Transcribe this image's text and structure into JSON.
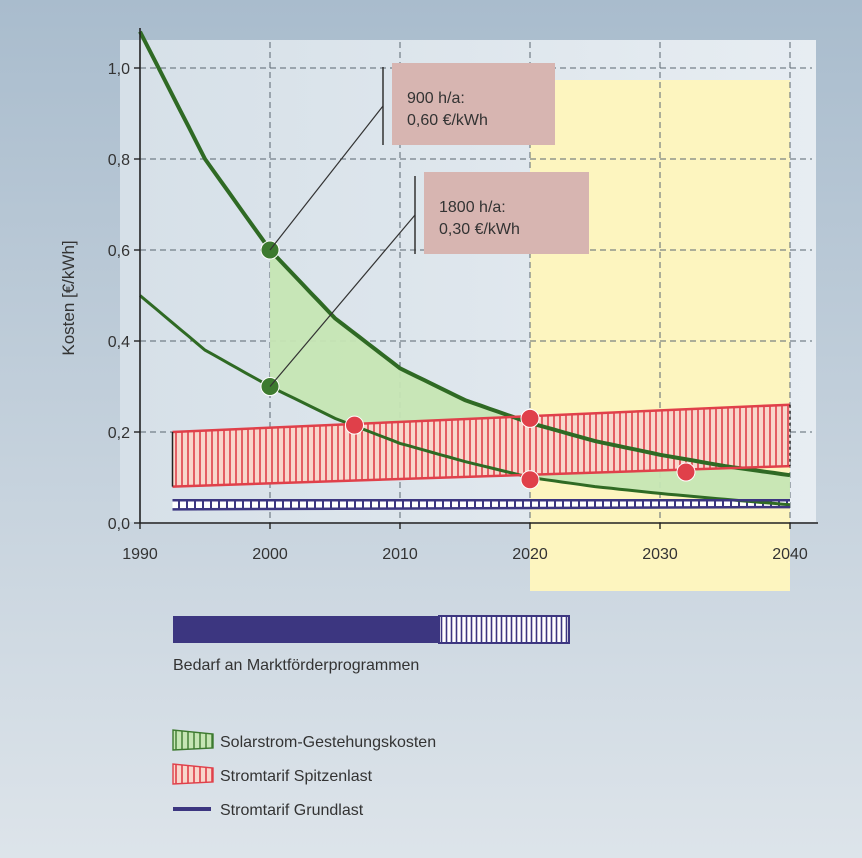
{
  "chart_data": {
    "type": "line",
    "ylabel": "Kosten [€/kWh]",
    "xlim": [
      1990,
      2040
    ],
    "ylim": [
      0,
      1.0
    ],
    "x_ticks": [
      "1990",
      "2000",
      "2010",
      "2020",
      "2030",
      "2040"
    ],
    "y_ticks": [
      "0,0",
      "0,2",
      "0,4",
      "0,6",
      "0,8",
      "1,0"
    ],
    "grid": true,
    "highlight_period": [
      2020,
      2040
    ],
    "series": [
      {
        "name": "Solarstrom-Gestehungskosten",
        "parts": [
          {
            "x": [
              1990,
              1995,
              2000,
              2005,
              2010,
              2015,
              2020,
              2025,
              2030,
              2035,
              2040
            ],
            "y": [
              1.08,
              0.8,
              0.6,
              0.45,
              0.34,
              0.27,
              0.22,
              0.18,
              0.15,
              0.125,
              0.105
            ]
          },
          {
            "x": [
              1990,
              1995,
              2000,
              2005,
              2010,
              2015,
              2020,
              2025,
              2030,
              2035,
              2040
            ],
            "y": [
              0.5,
              0.38,
              0.3,
              0.23,
              0.175,
              0.135,
              0.1,
              0.08,
              0.065,
              0.052,
              0.04
            ]
          }
        ]
      },
      {
        "name": "Stromtarif Spitzenlast",
        "parts": [
          {
            "x": [
              1992.5,
              2040
            ],
            "y": [
              0.2,
              0.26
            ]
          },
          {
            "x": [
              1992.5,
              2040
            ],
            "y": [
              0.08,
              0.125
            ]
          }
        ]
      },
      {
        "name": "Stromtarif Grundlast",
        "parts": [
          {
            "x": [
              1992.5,
              2040
            ],
            "y": [
              0.05,
              0.05
            ]
          },
          {
            "x": [
              1992.5,
              2040
            ],
            "y": [
              0.03,
              0.035
            ]
          }
        ]
      }
    ],
    "markers": [
      {
        "x": 2000,
        "y": 0.6,
        "color": "#3d7a2f"
      },
      {
        "x": 2000,
        "y": 0.3,
        "color": "#3d7a2f"
      },
      {
        "x": 2006.5,
        "y": 0.215,
        "color": "#e0404a"
      },
      {
        "x": 2020,
        "y": 0.23,
        "color": "#e0404a"
      },
      {
        "x": 2020,
        "y": 0.095,
        "color": "#e0404a"
      },
      {
        "x": 2032,
        "y": 0.112,
        "color": "#e0404a"
      }
    ],
    "annotations": [
      {
        "line1": "900 h/a:",
        "line2": "0,60 €/kWh",
        "target_x": 2000,
        "target_y": 0.6
      },
      {
        "line1": "1800 h/a:",
        "line2": "0,30 €/kWh",
        "target_x": 2000,
        "target_y": 0.3
      }
    ],
    "market_bar": {
      "label": "Bedarf an Marktförderprogrammen",
      "solid_until": 2013,
      "hatched_until": 2023
    },
    "legend": [
      {
        "label": "Solarstrom-Gestehungskosten",
        "style": "green-hatched",
        "color": "#3d7a2f",
        "fill": "#c6e6b4"
      },
      {
        "label": "Stromtarif Spitzenlast",
        "style": "red-hatched",
        "color": "#e0404a",
        "fill": "#f7c8c0"
      },
      {
        "label": "Stromtarif Grundlast",
        "style": "line",
        "color": "#3c3680"
      }
    ]
  }
}
